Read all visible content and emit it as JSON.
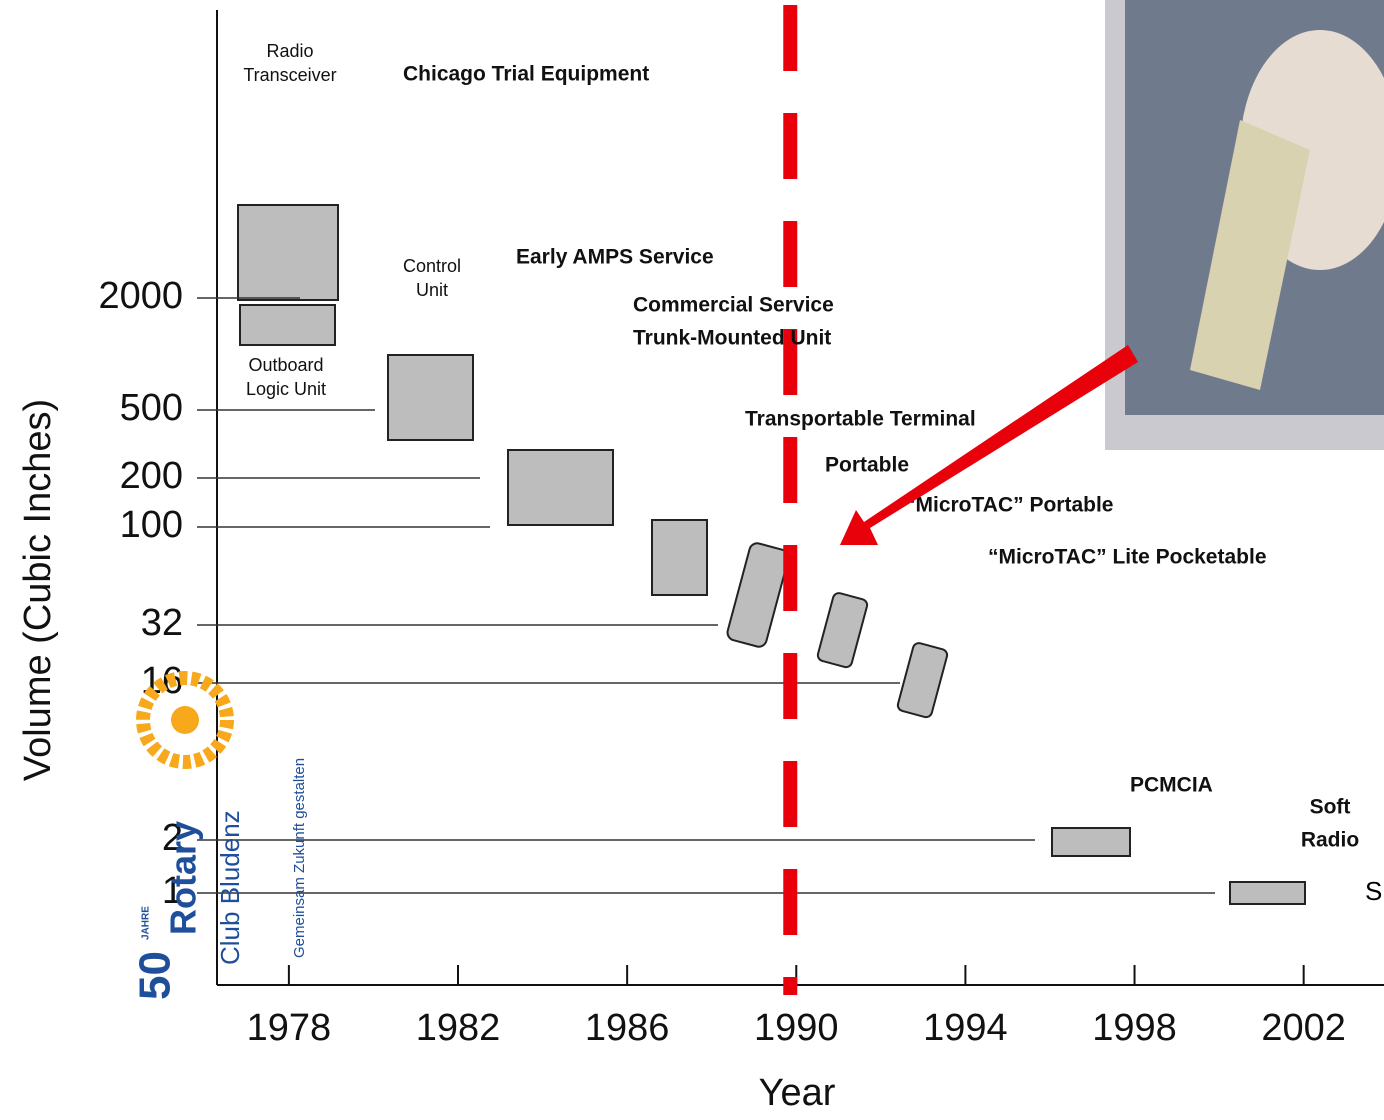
{
  "chart_data": {
    "type": "annotated-timeline",
    "y_label": "Volume (Cubic Inches)",
    "x_label": "Year",
    "xlim": [
      1976.3,
      2003.9
    ],
    "xticks": [
      1978,
      1982,
      1986,
      1990,
      1994,
      1998,
      2002
    ],
    "yticks": [
      2000,
      500,
      200,
      100,
      32,
      16,
      2,
      1
    ],
    "highlight_color": "#e8000b",
    "annotations": [
      {
        "lines": [
          "Radio",
          "Transceiver"
        ]
      },
      {
        "lines": [
          "Chicago Trial Equipment"
        ]
      },
      {
        "lines": [
          "Control",
          "Unit"
        ]
      },
      {
        "lines": [
          "Outboard",
          "Logic Unit"
        ]
      },
      {
        "lines": [
          "Early AMPS Service"
        ]
      },
      {
        "lines": [
          "Commercial Service",
          "Trunk-Mounted Unit"
        ]
      },
      {
        "lines": [
          "Transportable Terminal"
        ]
      },
      {
        "lines": [
          "Portable"
        ]
      },
      {
        "lines": [
          "“MicroTAC” Portable"
        ]
      },
      {
        "lines": [
          "“MicroTAC” Lite Pocketable"
        ]
      },
      {
        "lines": [
          "PCMCIA"
        ]
      },
      {
        "lines": [
          "Soft",
          "Radio"
        ]
      }
    ],
    "side_note": "S",
    "logo": {
      "number": "50",
      "sup": "JAHRE",
      "name": "Rotary",
      "club": "Club Bludenz",
      "motto": "Gemeinsam Zukunft gestalten"
    }
  }
}
